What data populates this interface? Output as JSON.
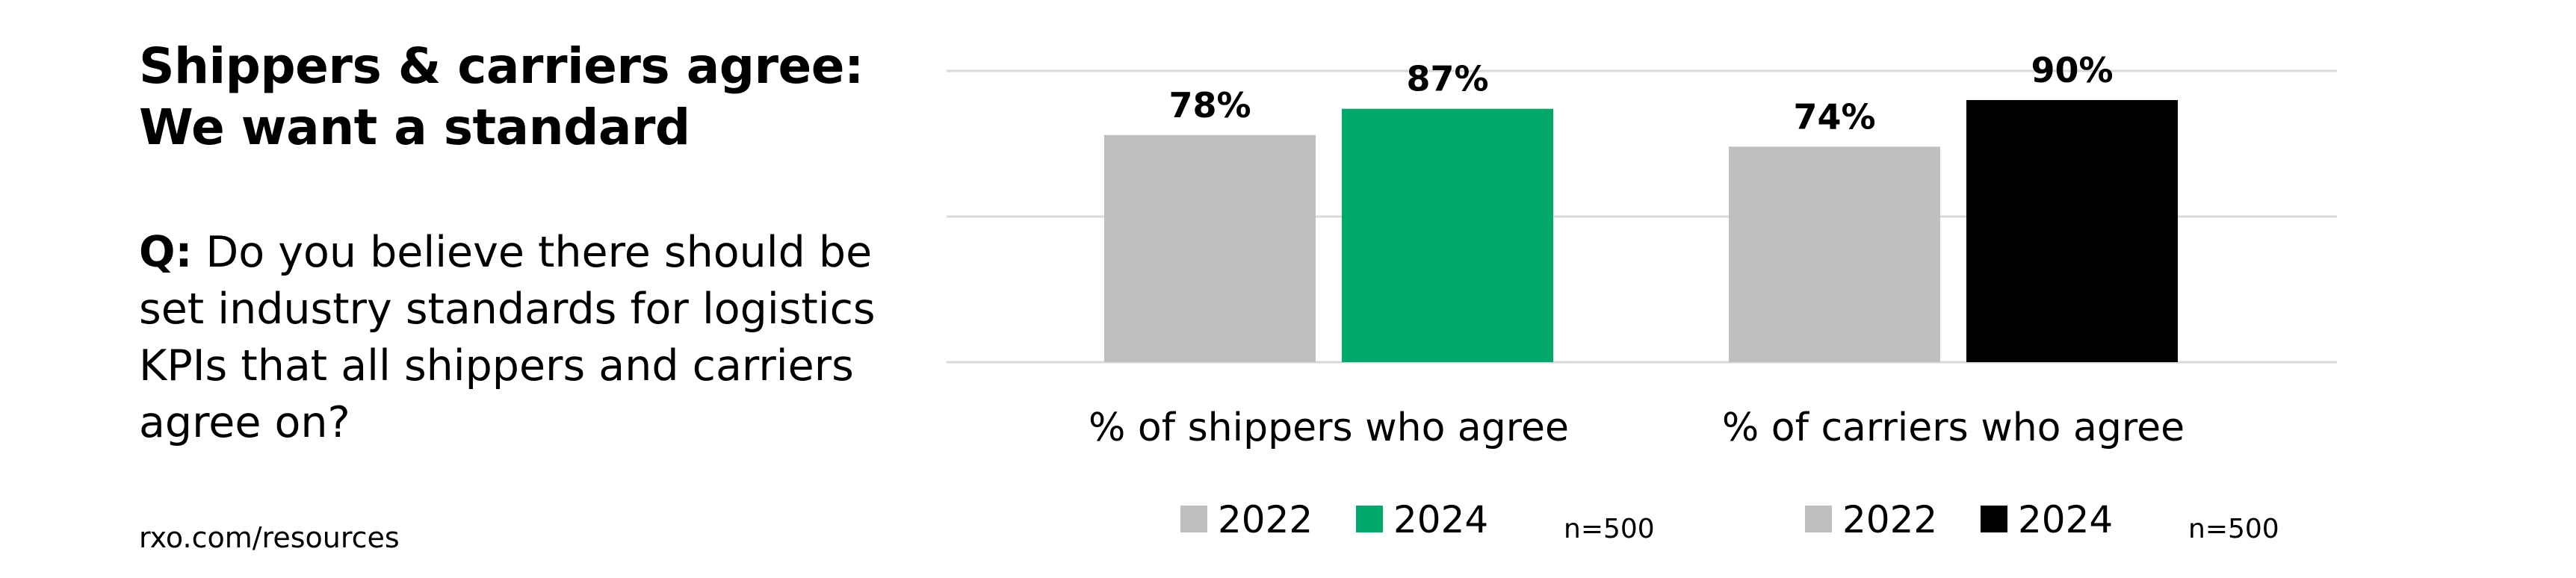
{
  "title_lines": [
    "Shippers & carriers agree:",
    "We want a standard"
  ],
  "question": {
    "prefix": "Q:",
    "text": "Do you believe there should be set industry standards for logistics KPIs that all shippers and carriers agree on?"
  },
  "source": "rxo.com/resources",
  "chart_data": {
    "type": "bar",
    "categories": [
      "% of shippers who agree",
      "% of carriers who agree"
    ],
    "ylim": [
      0,
      100
    ],
    "gridlines": [
      0,
      50,
      100
    ],
    "grid": true,
    "groups": [
      {
        "category": "% of shippers who agree",
        "bars": [
          {
            "name": "2022",
            "value": 78,
            "label": "78%",
            "color": "#bfbfbf"
          },
          {
            "name": "2024",
            "value": 87,
            "label": "87%",
            "color": "#00a86b"
          }
        ],
        "legend": [
          {
            "name": "2022",
            "color": "#bfbfbf"
          },
          {
            "name": "2024",
            "color": "#00a86b"
          }
        ],
        "n": "n=500"
      },
      {
        "category": "% of carriers who agree",
        "bars": [
          {
            "name": "2022",
            "value": 74,
            "label": "74%",
            "color": "#bfbfbf"
          },
          {
            "name": "2024",
            "value": 90,
            "label": "90%",
            "color": "#000000"
          }
        ],
        "legend": [
          {
            "name": "2022",
            "color": "#bfbfbf"
          },
          {
            "name": "2024",
            "color": "#000000"
          }
        ],
        "n": "n=500"
      }
    ]
  }
}
